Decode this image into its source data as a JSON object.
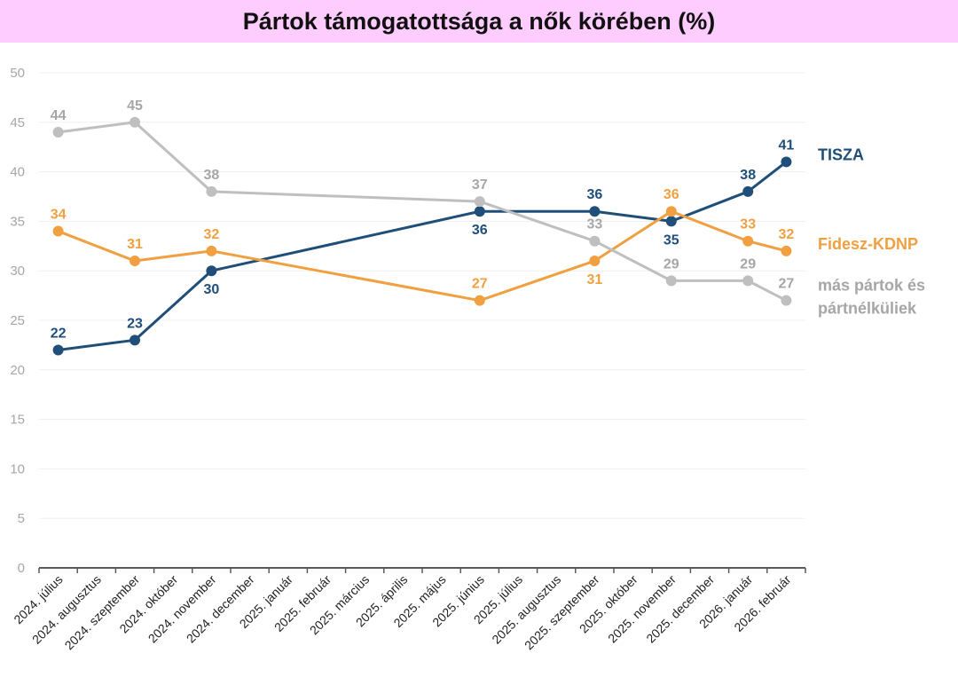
{
  "title": "Pártok támogatottsága a nők körében (%)",
  "chart_data": {
    "type": "line",
    "title": "Pártok támogatottsága a nők körében (%)",
    "xlabel": "",
    "ylabel": "",
    "ylim": [
      0,
      50
    ],
    "yticks": [
      0,
      5,
      10,
      15,
      20,
      25,
      30,
      35,
      40,
      45,
      50
    ],
    "grid": true,
    "legend_placement": "right",
    "categories": [
      "2024. július",
      "2024. augusztus",
      "2024. szeptember",
      "2024. október",
      "2024. november",
      "2024. december",
      "2025. január",
      "2025. február",
      "2025. március",
      "2025. április",
      "2025. május",
      "2025. június",
      "2025. július",
      "2025. augusztus",
      "2025. szeptember",
      "2025. október",
      "2025. november",
      "2025. december",
      "2026. január",
      "2026. február"
    ],
    "series": [
      {
        "name": "TISZA",
        "color": "#1f4e79",
        "points": [
          {
            "category": "2024. július",
            "value": 22,
            "label_pos": "above"
          },
          {
            "category": "2024. szeptember",
            "value": 23,
            "label_pos": "above"
          },
          {
            "category": "2024. november",
            "value": 30,
            "label_pos": "below"
          },
          {
            "category": "2025. június",
            "value": 36,
            "label_pos": "below"
          },
          {
            "category": "2025. szeptember",
            "value": 36,
            "label_pos": "above"
          },
          {
            "category": "2025. november",
            "value": 35,
            "label_pos": "below"
          },
          {
            "category": "2026. január",
            "value": 38,
            "label_pos": "above"
          },
          {
            "category": "2026. február",
            "value": 41,
            "label_pos": "above"
          }
        ]
      },
      {
        "name": "Fidesz-KDNP",
        "color": "#f0a040",
        "points": [
          {
            "category": "2024. július",
            "value": 34,
            "label_pos": "above"
          },
          {
            "category": "2024. szeptember",
            "value": 31,
            "label_pos": "above"
          },
          {
            "category": "2024. november",
            "value": 32,
            "label_pos": "above"
          },
          {
            "category": "2025. június",
            "value": 27,
            "label_pos": "above"
          },
          {
            "category": "2025. szeptember",
            "value": 31,
            "label_pos": "below"
          },
          {
            "category": "2025. november",
            "value": 36,
            "label_pos": "above"
          },
          {
            "category": "2026. január",
            "value": 33,
            "label_pos": "above"
          },
          {
            "category": "2026. február",
            "value": 32,
            "label_pos": "above"
          }
        ]
      },
      {
        "name": "más pártok és pártnélküliek",
        "legend_lines": [
          "más pártok és",
          "pártnélküliek"
        ],
        "color": "#bfbfbf",
        "label_color": "#a6a6a6",
        "points": [
          {
            "category": "2024. július",
            "value": 44,
            "label_pos": "above"
          },
          {
            "category": "2024. szeptember",
            "value": 45,
            "label_pos": "above"
          },
          {
            "category": "2024. november",
            "value": 38,
            "label_pos": "above"
          },
          {
            "category": "2025. június",
            "value": 37,
            "label_pos": "above"
          },
          {
            "category": "2025. szeptember",
            "value": 33,
            "label_pos": "above"
          },
          {
            "category": "2025. november",
            "value": 29,
            "label_pos": "above"
          },
          {
            "category": "2026. január",
            "value": 29,
            "label_pos": "above"
          },
          {
            "category": "2026. február",
            "value": 27,
            "label_pos": "above"
          }
        ]
      }
    ]
  },
  "colors": {
    "title_background": "#ffccff",
    "axis": "#595959",
    "grid": "#efefef",
    "tick_text": "#a6a6a6"
  }
}
